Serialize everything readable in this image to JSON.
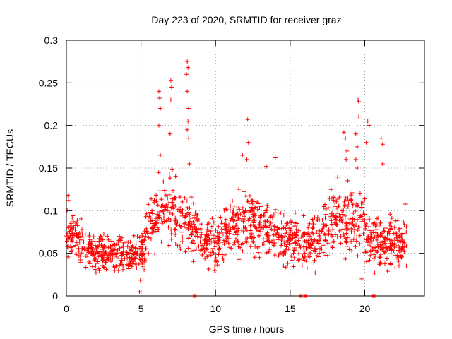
{
  "chart_data": {
    "type": "scatter",
    "title": "Day 223 of 2020, SRMTID for receiver graz",
    "xlabel": "GPS time / hours",
    "ylabel": "SRMTID / TECUs",
    "xlim": [
      0,
      24
    ],
    "ylim": [
      0,
      0.3
    ],
    "xticks": [
      0,
      5,
      10,
      15,
      20
    ],
    "yticks": [
      0,
      0.05,
      0.1,
      0.15,
      0.2,
      0.25,
      0.3
    ],
    "xtick_labels": [
      "0",
      "5",
      "10",
      "15",
      "20"
    ],
    "ytick_labels": [
      "0",
      "0.05",
      "0.1",
      "0.15",
      "0.2",
      "0.25",
      "0.3"
    ],
    "grid": true,
    "marker_color": "#ff0000",
    "marker": "plus",
    "envelope_hours": [
      0,
      1,
      2,
      3,
      4,
      5,
      6,
      7,
      8,
      9,
      10,
      11,
      12,
      13,
      14,
      15,
      16,
      17,
      18,
      19,
      20,
      21,
      22,
      22.8
    ],
    "envelope_typical": [
      0.07,
      0.065,
      0.05,
      0.05,
      0.05,
      0.045,
      0.1,
      0.1,
      0.085,
      0.07,
      0.06,
      0.08,
      0.09,
      0.08,
      0.075,
      0.065,
      0.06,
      0.07,
      0.09,
      0.09,
      0.08,
      0.06,
      0.06,
      0.07
    ],
    "envelope_spread": [
      0.025,
      0.025,
      0.02,
      0.02,
      0.02,
      0.025,
      0.04,
      0.04,
      0.035,
      0.03,
      0.03,
      0.035,
      0.035,
      0.035,
      0.03,
      0.03,
      0.03,
      0.03,
      0.04,
      0.04,
      0.035,
      0.03,
      0.03,
      0.035
    ],
    "highlights": [
      {
        "x": 0.1,
        "y": 0.118
      },
      {
        "x": 0.15,
        "y": 0.112
      },
      {
        "x": 4.9,
        "y": 0.005
      },
      {
        "x": 6.2,
        "y": 0.24
      },
      {
        "x": 6.25,
        "y": 0.232
      },
      {
        "x": 6.3,
        "y": 0.22
      },
      {
        "x": 6.2,
        "y": 0.2
      },
      {
        "x": 6.3,
        "y": 0.165
      },
      {
        "x": 7.0,
        "y": 0.253
      },
      {
        "x": 7.05,
        "y": 0.245
      },
      {
        "x": 7.0,
        "y": 0.23
      },
      {
        "x": 6.95,
        "y": 0.19
      },
      {
        "x": 7.1,
        "y": 0.148
      },
      {
        "x": 8.1,
        "y": 0.275
      },
      {
        "x": 8.15,
        "y": 0.268
      },
      {
        "x": 8.05,
        "y": 0.26
      },
      {
        "x": 8.1,
        "y": 0.24
      },
      {
        "x": 8.2,
        "y": 0.22
      },
      {
        "x": 8.15,
        "y": 0.205
      },
      {
        "x": 8.1,
        "y": 0.195
      },
      {
        "x": 8.2,
        "y": 0.185
      },
      {
        "x": 8.25,
        "y": 0.155
      },
      {
        "x": 11.8,
        "y": 0.165
      },
      {
        "x": 12.15,
        "y": 0.207
      },
      {
        "x": 12.2,
        "y": 0.18
      },
      {
        "x": 12.1,
        "y": 0.16
      },
      {
        "x": 13.4,
        "y": 0.152
      },
      {
        "x": 14.0,
        "y": 0.162
      },
      {
        "x": 18.6,
        "y": 0.192
      },
      {
        "x": 18.7,
        "y": 0.185
      },
      {
        "x": 18.8,
        "y": 0.17
      },
      {
        "x": 18.75,
        "y": 0.16
      },
      {
        "x": 19.4,
        "y": 0.19
      },
      {
        "x": 19.5,
        "y": 0.175
      },
      {
        "x": 19.4,
        "y": 0.16
      },
      {
        "x": 19.5,
        "y": 0.15
      },
      {
        "x": 19.55,
        "y": 0.23
      },
      {
        "x": 19.6,
        "y": 0.228
      },
      {
        "x": 19.6,
        "y": 0.21
      },
      {
        "x": 20.2,
        "y": 0.205
      },
      {
        "x": 20.3,
        "y": 0.2
      },
      {
        "x": 20.1,
        "y": 0.18
      },
      {
        "x": 21.1,
        "y": 0.185
      },
      {
        "x": 21.2,
        "y": 0.178
      },
      {
        "x": 21.2,
        "y": 0.155
      },
      {
        "x": 19.8,
        "y": 0.02
      }
    ],
    "zero_markers": [
      8.6,
      15.7,
      16.0,
      20.6
    ]
  }
}
